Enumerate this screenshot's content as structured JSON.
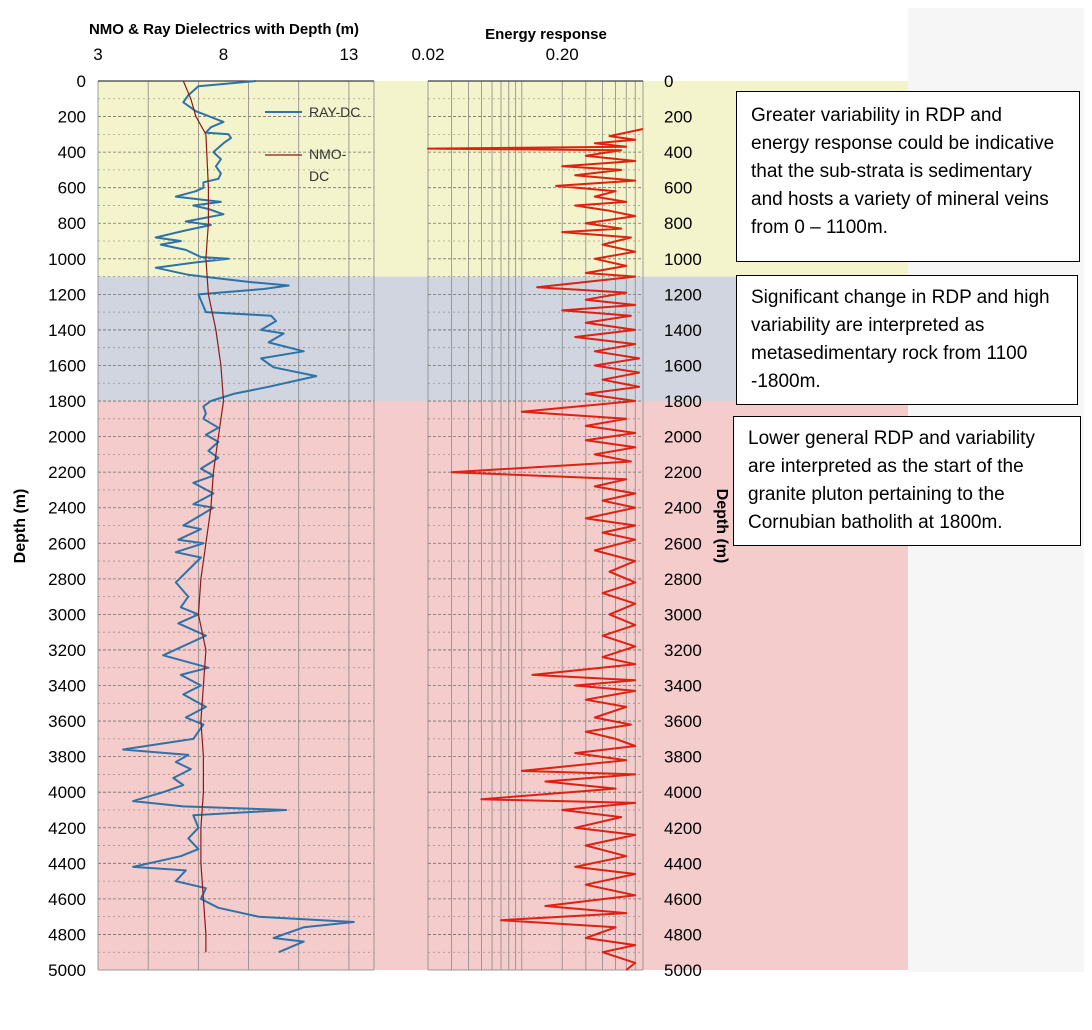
{
  "chart_data": [
    {
      "type": "line",
      "title": "NMO & Ray Dielectrics with Depth (m)",
      "ylabel": "Depth (m)",
      "xlabel": "",
      "xlim": [
        3,
        14
      ],
      "xticks": [
        "3",
        "8",
        "13"
      ],
      "xtick_values": [
        3,
        8,
        13
      ],
      "ylim": [
        0,
        5000
      ],
      "y_inverted": true,
      "yticks": [
        "0",
        "200",
        "400",
        "600",
        "800",
        "1000",
        "1200",
        "1400",
        "1600",
        "1800",
        "2000",
        "2200",
        "2400",
        "2600",
        "2800",
        "3000",
        "3200",
        "3400",
        "3600",
        "3800",
        "4000",
        "4200",
        "4400",
        "4600",
        "4800",
        "5000"
      ],
      "grid": true,
      "legend_position": "top-right",
      "series": [
        {
          "name": "RAY-DC",
          "color": "#2e73a8",
          "points": [
            [
              9.3,
              0
            ],
            [
              7.0,
              30
            ],
            [
              6.6,
              80
            ],
            [
              6.4,
              120
            ],
            [
              6.9,
              170
            ],
            [
              8.0,
              230
            ],
            [
              7.5,
              260
            ],
            [
              7.3,
              290
            ],
            [
              8.2,
              300
            ],
            [
              8.3,
              320
            ],
            [
              8.0,
              350
            ],
            [
              7.6,
              400
            ],
            [
              7.9,
              440
            ],
            [
              7.7,
              480
            ],
            [
              7.9,
              520
            ],
            [
              7.8,
              550
            ],
            [
              7.2,
              570
            ],
            [
              7.2,
              600
            ],
            [
              6.9,
              620
            ],
            [
              6.1,
              650
            ],
            [
              7.9,
              680
            ],
            [
              6.8,
              700
            ],
            [
              7.4,
              720
            ],
            [
              8.0,
              750
            ],
            [
              6.5,
              790
            ],
            [
              7.5,
              810
            ],
            [
              6.5,
              840
            ],
            [
              5.3,
              880
            ],
            [
              6.3,
              900
            ],
            [
              5.5,
              920
            ],
            [
              6.5,
              950
            ],
            [
              7.1,
              990
            ],
            [
              8.2,
              1000
            ],
            [
              6.9,
              1020
            ],
            [
              5.3,
              1050
            ],
            [
              6.6,
              1090
            ],
            [
              7.2,
              1100
            ],
            [
              9.0,
              1130
            ],
            [
              10.6,
              1150
            ],
            [
              9.6,
              1170
            ],
            [
              7.0,
              1200
            ],
            [
              7.3,
              1300
            ],
            [
              9.9,
              1320
            ],
            [
              10.1,
              1350
            ],
            [
              9.5,
              1400
            ],
            [
              10.4,
              1420
            ],
            [
              9.8,
              1470
            ],
            [
              11.2,
              1520
            ],
            [
              9.5,
              1560
            ],
            [
              10.0,
              1610
            ],
            [
              11.7,
              1660
            ],
            [
              9.8,
              1720
            ],
            [
              8.4,
              1760
            ],
            [
              7.5,
              1800
            ],
            [
              7.2,
              1830
            ],
            [
              7.3,
              1870
            ],
            [
              7.2,
              1900
            ],
            [
              7.8,
              1950
            ],
            [
              7.3,
              1990
            ],
            [
              7.8,
              2030
            ],
            [
              7.4,
              2080
            ],
            [
              7.8,
              2120
            ],
            [
              7.1,
              2180
            ],
            [
              7.6,
              2220
            ],
            [
              6.8,
              2260
            ],
            [
              7.6,
              2320
            ],
            [
              6.8,
              2380
            ],
            [
              7.6,
              2400
            ],
            [
              7.0,
              2450
            ],
            [
              6.4,
              2500
            ],
            [
              7.1,
              2520
            ],
            [
              6.2,
              2580
            ],
            [
              7.2,
              2600
            ],
            [
              6.1,
              2650
            ],
            [
              7.1,
              2680
            ],
            [
              6.6,
              2750
            ],
            [
              6.1,
              2820
            ],
            [
              6.6,
              2900
            ],
            [
              6.3,
              2960
            ],
            [
              7.0,
              3000
            ],
            [
              6.2,
              3050
            ],
            [
              7.3,
              3120
            ],
            [
              5.6,
              3230
            ],
            [
              7.4,
              3300
            ],
            [
              6.3,
              3340
            ],
            [
              7.1,
              3400
            ],
            [
              6.4,
              3450
            ],
            [
              7.3,
              3520
            ],
            [
              6.5,
              3580
            ],
            [
              7.2,
              3620
            ],
            [
              6.8,
              3700
            ],
            [
              4.0,
              3760
            ],
            [
              6.6,
              3790
            ],
            [
              6.1,
              3830
            ],
            [
              6.7,
              3870
            ],
            [
              6.0,
              3920
            ],
            [
              6.4,
              3960
            ],
            [
              5.6,
              4000
            ],
            [
              4.4,
              4050
            ],
            [
              6.4,
              4080
            ],
            [
              10.5,
              4100
            ],
            [
              6.8,
              4130
            ],
            [
              7.0,
              4200
            ],
            [
              6.6,
              4260
            ],
            [
              7.0,
              4320
            ],
            [
              6.3,
              4360
            ],
            [
              4.4,
              4420
            ],
            [
              6.5,
              4440
            ],
            [
              6.1,
              4500
            ],
            [
              7.3,
              4540
            ],
            [
              7.1,
              4600
            ],
            [
              7.8,
              4650
            ],
            [
              9.4,
              4700
            ],
            [
              13.2,
              4730
            ],
            [
              11.2,
              4760
            ],
            [
              10.0,
              4820
            ],
            [
              11.2,
              4840
            ],
            [
              10.2,
              4900
            ]
          ]
        },
        {
          "name": "NMO-DC",
          "color": "#8b1a1a",
          "points": [
            [
              6.4,
              0
            ],
            [
              6.7,
              100
            ],
            [
              6.9,
              200
            ],
            [
              7.3,
              300
            ],
            [
              7.4,
              600
            ],
            [
              7.4,
              800
            ],
            [
              7.3,
              1000
            ],
            [
              7.4,
              1200
            ],
            [
              7.7,
              1400
            ],
            [
              7.9,
              1600
            ],
            [
              8.0,
              1800
            ],
            [
              7.8,
              2000
            ],
            [
              7.6,
              2200
            ],
            [
              7.5,
              2400
            ],
            [
              7.3,
              2600
            ],
            [
              7.1,
              2800
            ],
            [
              7.0,
              3000
            ],
            [
              7.3,
              3200
            ],
            [
              7.2,
              3400
            ],
            [
              7.1,
              3600
            ],
            [
              7.2,
              3800
            ],
            [
              7.2,
              4000
            ],
            [
              7.1,
              4200
            ],
            [
              7.1,
              4400
            ],
            [
              7.2,
              4600
            ],
            [
              7.3,
              4800
            ],
            [
              7.3,
              4900
            ]
          ]
        }
      ]
    },
    {
      "type": "line",
      "title": "Energy response",
      "xlabel": "",
      "ylabel": "Depth (m)",
      "x_scale": "log",
      "xlim": [
        0.02,
        0.8
      ],
      "xticks": [
        "0.02",
        "0.20"
      ],
      "xtick_values": [
        0.02,
        0.2
      ],
      "ylim": [
        0,
        5000
      ],
      "y_inverted": true,
      "grid": true,
      "series": [
        {
          "color": "#e02010",
          "points": [
            [
              0.8,
              270
            ],
            [
              0.45,
              310
            ],
            [
              0.7,
              330
            ],
            [
              0.35,
              350
            ],
            [
              0.6,
              370
            ],
            [
              0.02,
              380
            ],
            [
              0.55,
              390
            ],
            [
              0.3,
              420
            ],
            [
              0.7,
              450
            ],
            [
              0.2,
              480
            ],
            [
              0.55,
              500
            ],
            [
              0.25,
              530
            ],
            [
              0.7,
              560
            ],
            [
              0.18,
              590
            ],
            [
              0.5,
              620
            ],
            [
              0.35,
              650
            ],
            [
              0.6,
              680
            ],
            [
              0.25,
              700
            ],
            [
              0.45,
              730
            ],
            [
              0.7,
              760
            ],
            [
              0.3,
              800
            ],
            [
              0.55,
              830
            ],
            [
              0.2,
              850
            ],
            [
              0.65,
              880
            ],
            [
              0.4,
              920
            ],
            [
              0.7,
              960
            ],
            [
              0.35,
              1000
            ],
            [
              0.6,
              1040
            ],
            [
              0.3,
              1080
            ],
            [
              0.7,
              1100
            ],
            [
              0.13,
              1160
            ],
            [
              0.6,
              1190
            ],
            [
              0.3,
              1230
            ],
            [
              0.7,
              1260
            ],
            [
              0.2,
              1290
            ],
            [
              0.65,
              1320
            ],
            [
              0.3,
              1360
            ],
            [
              0.7,
              1400
            ],
            [
              0.25,
              1440
            ],
            [
              0.7,
              1480
            ],
            [
              0.35,
              1520
            ],
            [
              0.75,
              1560
            ],
            [
              0.35,
              1600
            ],
            [
              0.75,
              1640
            ],
            [
              0.4,
              1680
            ],
            [
              0.75,
              1720
            ],
            [
              0.3,
              1760
            ],
            [
              0.7,
              1800
            ],
            [
              0.1,
              1860
            ],
            [
              0.6,
              1900
            ],
            [
              0.3,
              1940
            ],
            [
              0.7,
              1980
            ],
            [
              0.3,
              2020
            ],
            [
              0.7,
              2060
            ],
            [
              0.35,
              2100
            ],
            [
              0.65,
              2140
            ],
            [
              0.03,
              2200
            ],
            [
              0.6,
              2240
            ],
            [
              0.35,
              2280
            ],
            [
              0.7,
              2320
            ],
            [
              0.4,
              2360
            ],
            [
              0.7,
              2400
            ],
            [
              0.3,
              2460
            ],
            [
              0.7,
              2500
            ],
            [
              0.4,
              2540
            ],
            [
              0.7,
              2580
            ],
            [
              0.35,
              2640
            ],
            [
              0.7,
              2700
            ],
            [
              0.45,
              2760
            ],
            [
              0.7,
              2820
            ],
            [
              0.4,
              2880
            ],
            [
              0.7,
              2940
            ],
            [
              0.45,
              3000
            ],
            [
              0.7,
              3060
            ],
            [
              0.4,
              3120
            ],
            [
              0.7,
              3180
            ],
            [
              0.4,
              3240
            ],
            [
              0.7,
              3280
            ],
            [
              0.12,
              3340
            ],
            [
              0.7,
              3370
            ],
            [
              0.25,
              3400
            ],
            [
              0.7,
              3430
            ],
            [
              0.3,
              3480
            ],
            [
              0.6,
              3520
            ],
            [
              0.35,
              3580
            ],
            [
              0.65,
              3620
            ],
            [
              0.3,
              3660
            ],
            [
              0.5,
              3700
            ],
            [
              0.7,
              3740
            ],
            [
              0.25,
              3780
            ],
            [
              0.6,
              3820
            ],
            [
              0.1,
              3880
            ],
            [
              0.7,
              3900
            ],
            [
              0.15,
              3940
            ],
            [
              0.5,
              3980
            ],
            [
              0.05,
              4040
            ],
            [
              0.7,
              4060
            ],
            [
              0.2,
              4100
            ],
            [
              0.55,
              4140
            ],
            [
              0.25,
              4200
            ],
            [
              0.7,
              4240
            ],
            [
              0.3,
              4300
            ],
            [
              0.6,
              4360
            ],
            [
              0.25,
              4420
            ],
            [
              0.7,
              4460
            ],
            [
              0.3,
              4520
            ],
            [
              0.7,
              4580
            ],
            [
              0.15,
              4640
            ],
            [
              0.6,
              4680
            ],
            [
              0.07,
              4720
            ],
            [
              0.5,
              4760
            ],
            [
              0.3,
              4820
            ],
            [
              0.7,
              4860
            ],
            [
              0.4,
              4900
            ],
            [
              0.7,
              4960
            ],
            [
              0.6,
              5000
            ]
          ]
        }
      ]
    }
  ],
  "zones": [
    {
      "from": 0,
      "to": 1100,
      "color": "#f4f4cc"
    },
    {
      "from": 1100,
      "to": 1800,
      "color": "#d0d5df"
    },
    {
      "from": 1800,
      "to": 5000,
      "color": "#f4cccc"
    }
  ],
  "annotations": [
    "Greater variability in RDP and energy response could be indicative that the sub-strata is sedimentary and hosts a variety of mineral veins from 0 – 1100m.",
    "Significant change in RDP and high variability are interpreted as metasedimentary rock from 1100 -1800m.",
    "Lower general RDP and variability are interpreted as the start of the granite pluton pertaining to the Cornubian batholith at 1800m."
  ]
}
